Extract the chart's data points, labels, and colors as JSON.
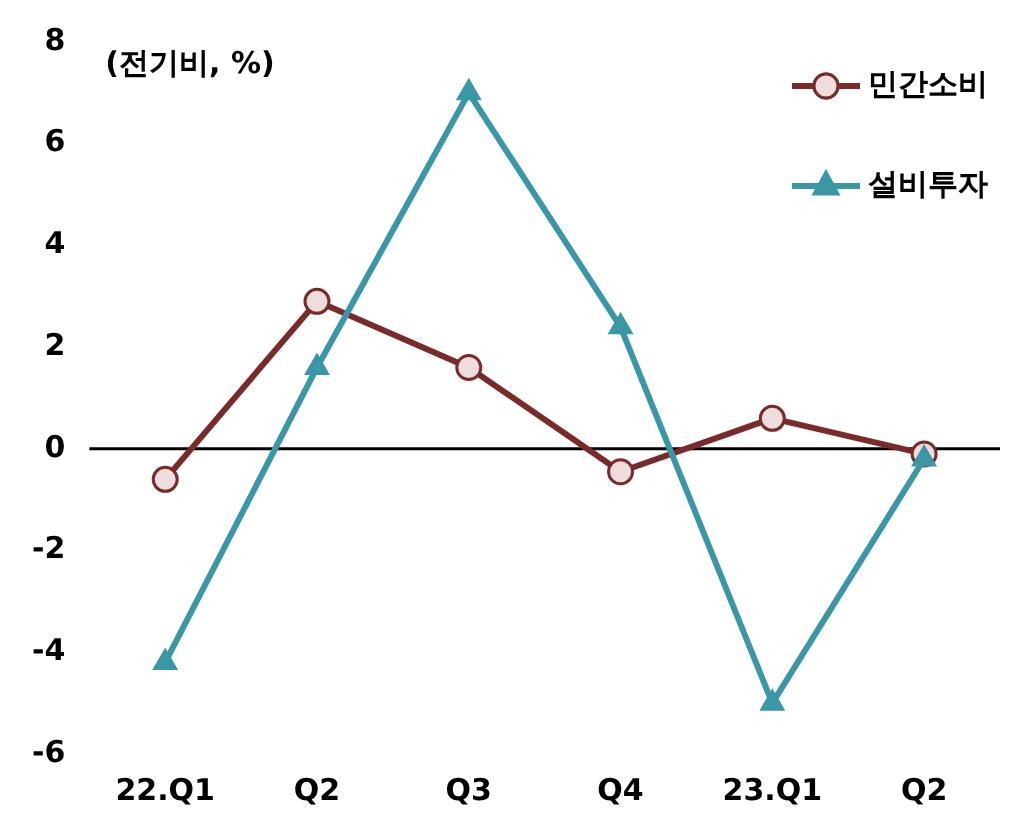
{
  "chart_data": {
    "type": "line",
    "categories": [
      "22.Q1",
      "Q2",
      "Q3",
      "Q4",
      "23.Q1",
      "Q2"
    ],
    "series": [
      {
        "name": "민간소비",
        "color": "#7b2a2a",
        "marker": "circle",
        "values": [
          -0.6,
          2.9,
          1.6,
          -0.45,
          0.6,
          -0.1
        ]
      },
      {
        "name": "설비투자",
        "color": "#3a97a6",
        "marker": "triangle",
        "values": [
          -4.2,
          1.6,
          7.0,
          2.4,
          -5.0,
          -0.2
        ]
      }
    ],
    "ylim": [
      -6,
      8
    ],
    "yticks": [
      -6,
      -4,
      -2,
      0,
      2,
      4,
      6,
      8
    ],
    "grid": false,
    "legend": "top right",
    "ref_lines": [
      {
        "axis": "y",
        "value": 0,
        "color": "#000000"
      }
    ],
    "annotations": [
      "(전기비, %)"
    ]
  }
}
